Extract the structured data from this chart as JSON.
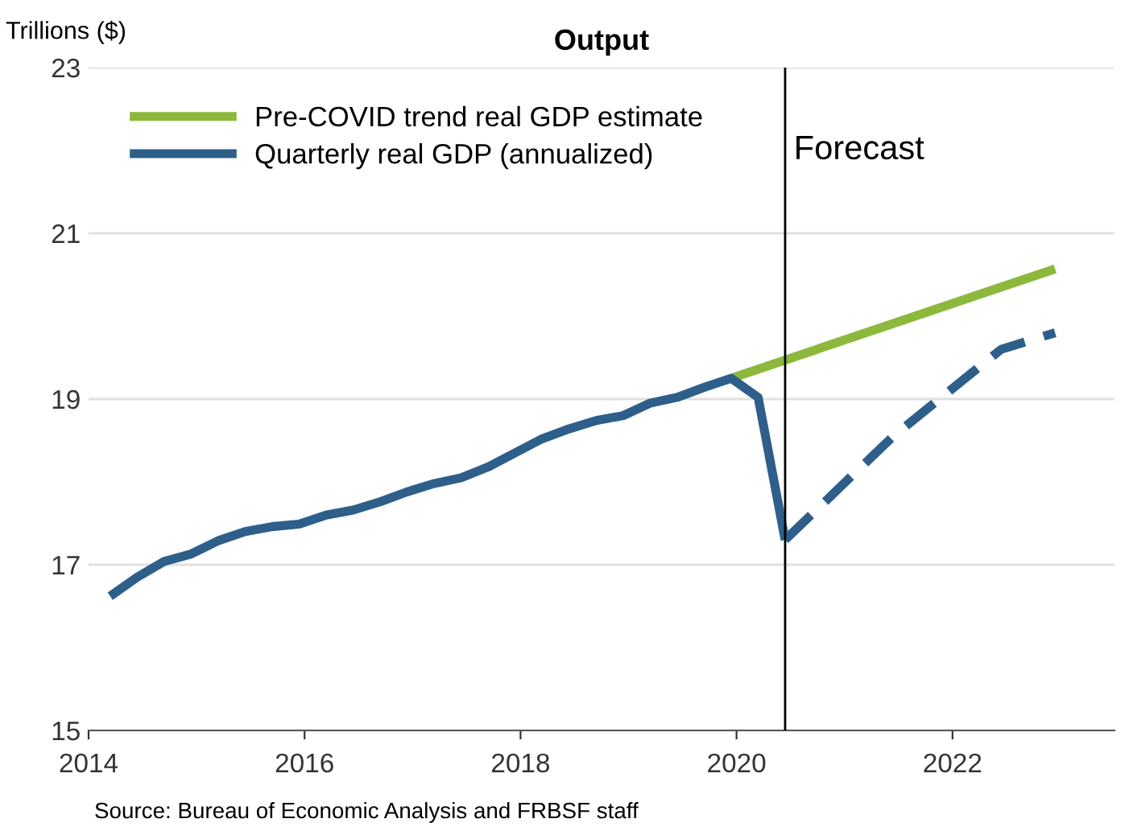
{
  "chart_data": {
    "type": "line",
    "title": "Output",
    "ylabel": "Trillions ($)",
    "series": [
      {
        "name": "Pre-COVID trend real GDP estimate",
        "color": "#8cb83c",
        "x": [
          2019.95,
          2022.95
        ],
        "values": [
          19.25,
          20.57
        ]
      },
      {
        "name": "Quarterly real GDP (annualized)",
        "color": "#2e5f8a",
        "x": [
          2014.2,
          2014.45,
          2014.7,
          2014.95,
          2015.2,
          2015.45,
          2015.7,
          2015.95,
          2016.2,
          2016.45,
          2016.7,
          2016.95,
          2017.2,
          2017.45,
          2017.7,
          2017.95,
          2018.2,
          2018.45,
          2018.7,
          2018.95,
          2019.2,
          2019.45,
          2019.7,
          2019.95,
          2020.2,
          2020.45
        ],
        "values": [
          16.62,
          16.85,
          17.04,
          17.13,
          17.29,
          17.4,
          17.46,
          17.49,
          17.6,
          17.66,
          17.76,
          17.88,
          17.98,
          18.05,
          18.18,
          18.35,
          18.52,
          18.64,
          18.74,
          18.8,
          18.95,
          19.02,
          19.14,
          19.25,
          19.02,
          17.3
        ]
      },
      {
        "color": "#2e5f8a",
        "line_style": "dashed",
        "x": [
          2020.45,
          2021.45,
          2022.45,
          2022.95
        ],
        "values": [
          17.3,
          18.55,
          19.6,
          19.8
        ]
      }
    ],
    "xlim": [
      2014,
      2023.5
    ],
    "xticks": [
      2014,
      2016,
      2018,
      2020,
      2022
    ],
    "ylim": [
      15,
      23
    ],
    "yticks": [
      15,
      17,
      19,
      21,
      23
    ],
    "grid": "y",
    "legend": "top left",
    "line_style": "solid",
    "marker": "none",
    "ref_lines": [
      {
        "axis": "x",
        "value": 2020.45,
        "label": "Forecast",
        "color": "#000000"
      }
    ],
    "annotations": [
      "Source: Bureau of Economic Analysis and FRBSF staff"
    ]
  }
}
